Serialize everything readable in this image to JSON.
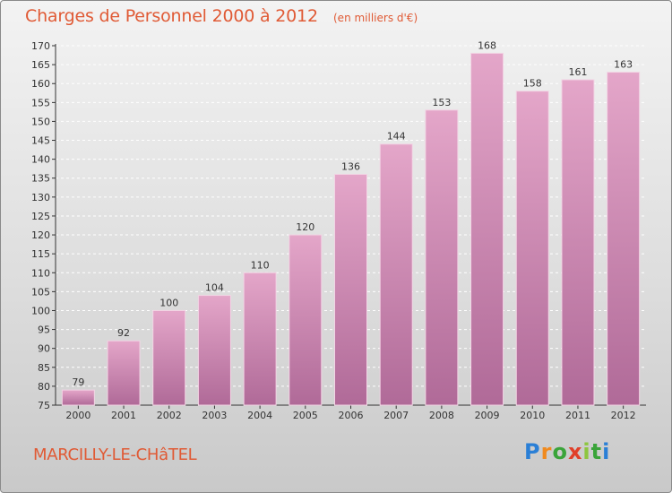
{
  "header": {
    "title": "Charges de Personnel 2000 à 2012",
    "subtitle": "(en milliers d'€)"
  },
  "footer": {
    "town": "MARCILLY-LE-CHâTEL",
    "logo": "Proxiti"
  },
  "colors": {
    "title": "#e05a35",
    "bar_light": "#e4a6c9",
    "bar_dark": "#b06a98"
  },
  "chart_data": {
    "type": "bar",
    "title": "Charges de Personnel 2000 à 2012",
    "subtitle": "(en milliers d'€)",
    "xlabel": "",
    "ylabel": "",
    "categories": [
      "2000",
      "2001",
      "2002",
      "2003",
      "2004",
      "2005",
      "2006",
      "2007",
      "2008",
      "2009",
      "2010",
      "2011",
      "2012"
    ],
    "values": [
      79,
      92,
      100,
      104,
      110,
      120,
      136,
      144,
      153,
      168,
      158,
      161,
      163
    ],
    "ylim": [
      75,
      170
    ],
    "yticks": [
      75,
      80,
      85,
      90,
      95,
      100,
      105,
      110,
      115,
      120,
      125,
      130,
      135,
      140,
      145,
      150,
      155,
      160,
      165,
      170
    ],
    "grid": true,
    "legend": "none"
  }
}
